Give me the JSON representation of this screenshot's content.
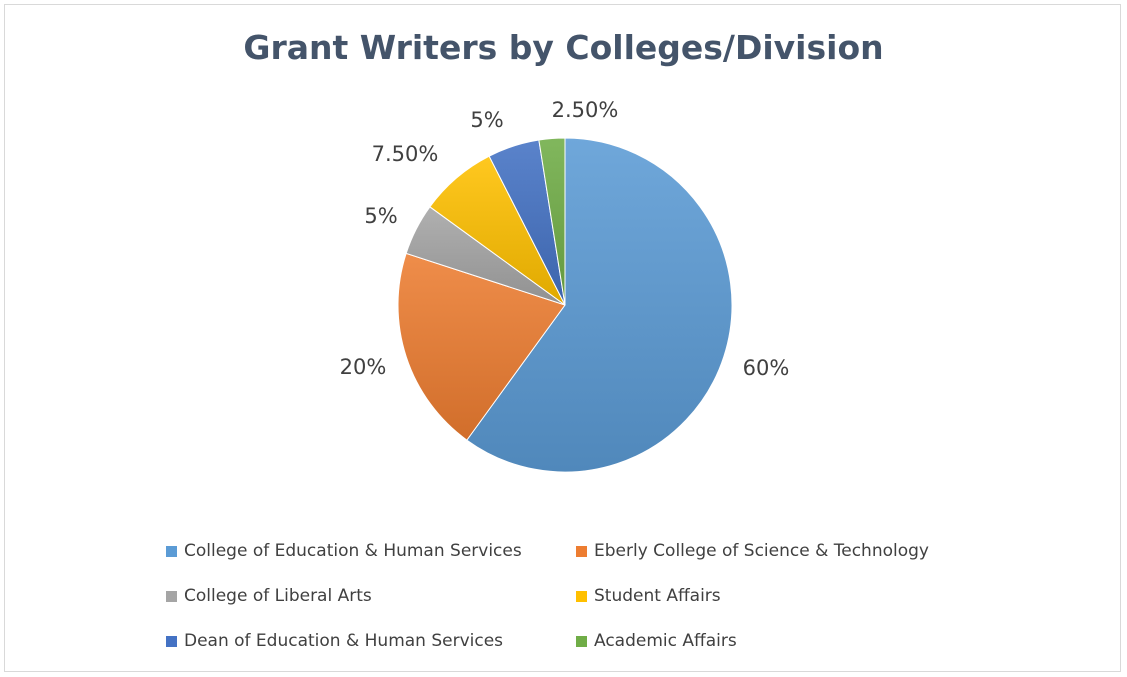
{
  "chart_data": {
    "type": "pie",
    "title": "Grant Writers by Colleges/Division",
    "legend_position": "bottom",
    "slices": [
      {
        "label": "College of Education & Human Services",
        "value": 60,
        "display": "60%",
        "color": "#5b9bd5"
      },
      {
        "label": "Eberly College of Science & Technology",
        "value": 20,
        "display": "20%",
        "color": "#ed7d31"
      },
      {
        "label": "College of Liberal Arts",
        "value": 5,
        "display": "5%",
        "color": "#a5a5a5"
      },
      {
        "label": "Student Affairs",
        "value": 7.5,
        "display": "7.50%",
        "color": "#ffc000"
      },
      {
        "label": "Dean of Education & Human Services",
        "value": 5,
        "display": "5%",
        "color": "#4472c4"
      },
      {
        "label": "Academic Affairs",
        "value": 2.5,
        "display": "2.50%",
        "color": "#70ad47"
      }
    ]
  }
}
